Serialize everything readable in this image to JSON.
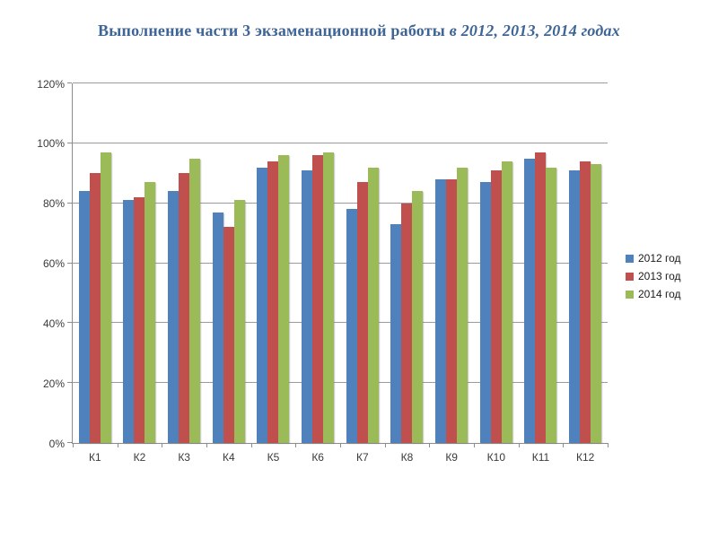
{
  "title": {
    "main": "Выполнение части 3 экзаменационной работы",
    "italic": "в 2012, 2013, 2014 годах"
  },
  "chart_data": {
    "type": "bar",
    "title": "Выполнение части 3 экзаменационной работы в 2012, 2013, 2014 годах",
    "categories": [
      "К1",
      "К2",
      "К3",
      "К4",
      "К5",
      "К6",
      "К7",
      "К8",
      "К9",
      "К10",
      "К11",
      "К12"
    ],
    "series": [
      {
        "name": "2012 год",
        "color": "#4F81BD",
        "values": [
          84,
          81,
          84,
          77,
          92,
          91,
          78,
          73,
          88,
          87,
          95,
          91
        ]
      },
      {
        "name": "2013 год",
        "color": "#C0504D",
        "values": [
          90,
          82,
          90,
          72,
          94,
          96,
          87,
          80,
          88,
          91,
          97,
          94
        ]
      },
      {
        "name": "2014 год",
        "color": "#9BBB59",
        "values": [
          97,
          87,
          95,
          81,
          96,
          97,
          92,
          84,
          92,
          94,
          92,
          93
        ]
      }
    ],
    "xlabel": "",
    "ylabel": "",
    "ylim": [
      0,
      120
    ],
    "ytick_step": 20,
    "ytick_labels": [
      "0%",
      "20%",
      "40%",
      "60%",
      "80%",
      "100%",
      "120%"
    ],
    "value_unit": "%",
    "grid": true,
    "legend_position": "right"
  },
  "colors": {
    "title": "#3E6595",
    "gridline": "#9b9b9b",
    "axis": "#8c8c8c",
    "tick_text": "#3a3a3a",
    "background": "#ffffff"
  }
}
